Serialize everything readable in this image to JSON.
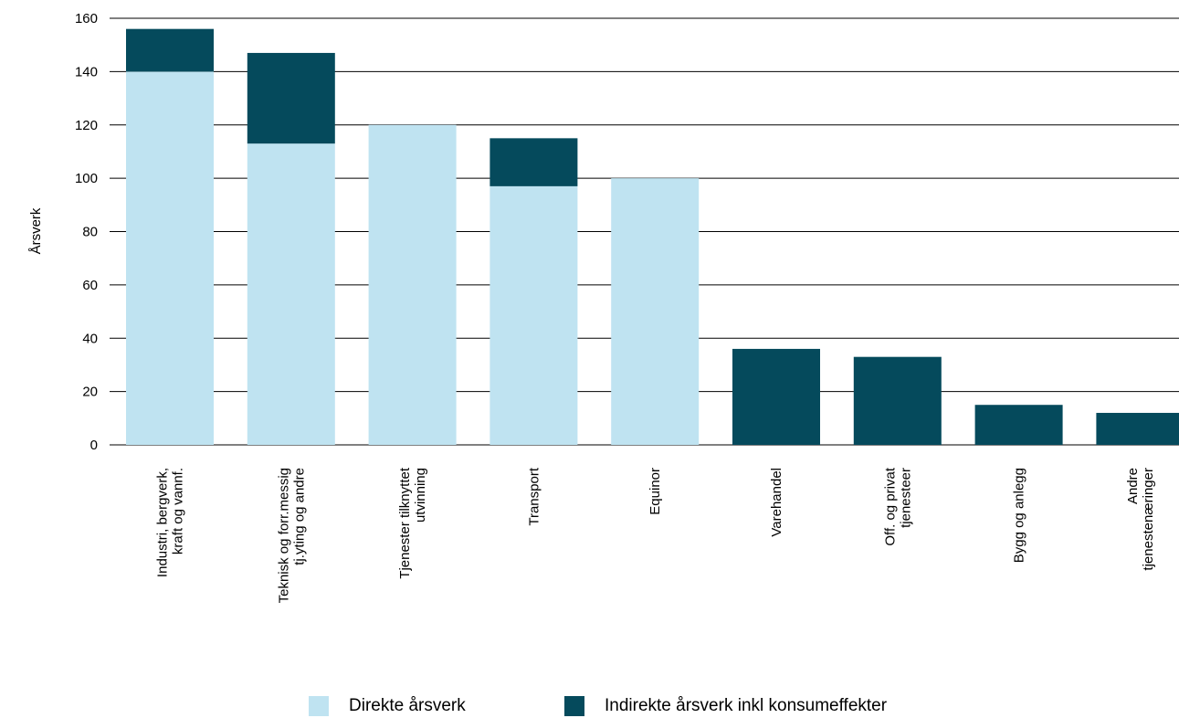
{
  "chart_data": {
    "type": "bar",
    "stacked": true,
    "ylabel": "Årsverk",
    "xlabel": "",
    "ylim": [
      0,
      160
    ],
    "yticks": [
      0,
      20,
      40,
      60,
      80,
      100,
      120,
      140,
      160
    ],
    "grid": true,
    "legend_position": "bottom",
    "categories": [
      [
        "Industri, bergverk,",
        "kraft og vannf."
      ],
      [
        "Teknisk og forr.messig",
        "tj.yting og andre"
      ],
      [
        "Tjenester tilknyttet",
        "utvinning"
      ],
      [
        "Transport"
      ],
      [
        "Equinor"
      ],
      [
        "Varehandel"
      ],
      [
        "Off. og privat",
        "tjenesteer"
      ],
      [
        "Bygg og anlegg"
      ],
      [
        "Andre",
        "tjenestenæringer"
      ]
    ],
    "series": [
      {
        "name": "Direkte årsverk",
        "color": "#bfe3f1",
        "values": [
          140,
          113,
          120,
          97,
          100,
          0,
          0,
          0,
          0
        ]
      },
      {
        "name": "Indirekte årsverk inkl konsumeffekter",
        "color": "#054a5c",
        "values": [
          16,
          34,
          0,
          18,
          0,
          36,
          33,
          15,
          12
        ]
      }
    ]
  }
}
